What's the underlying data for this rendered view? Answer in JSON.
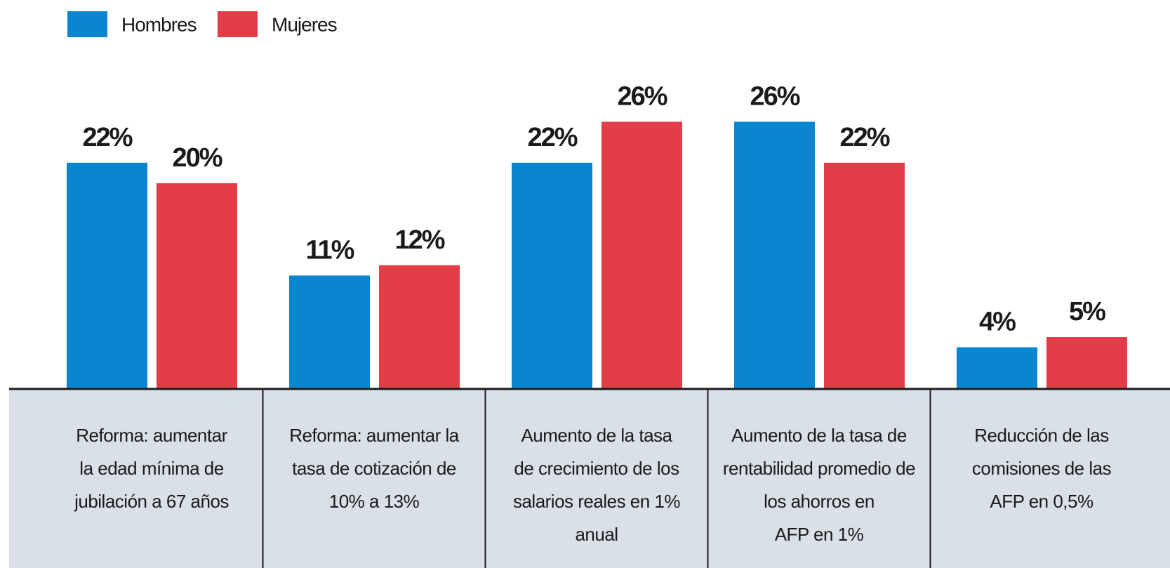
{
  "chart_data": {
    "type": "bar",
    "categories": [
      [
        "Reforma: aumentar",
        "la edad mínima de",
        "jubilación a 67 años"
      ],
      [
        "Reforma: aumentar la",
        "tasa de cotización de",
        "10% a 13%"
      ],
      [
        "Aumento de la tasa",
        "de crecimiento de los",
        "salarios reales en 1%",
        "anual"
      ],
      [
        "Aumento de la tasa de",
        "rentabilidad promedio de",
        "los ahorros en",
        "AFP en 1%"
      ],
      [
        "Reducción de las",
        "comisiones de las",
        "AFP en 0,5%"
      ]
    ],
    "series": [
      {
        "name": "Hombres",
        "color": "#0a86d0",
        "values": [
          22,
          11,
          22,
          26,
          4
        ],
        "value_labels": [
          "22%",
          "11%",
          "22%",
          "26%",
          "4%"
        ]
      },
      {
        "name": "Mujeres",
        "color": "#e33d47",
        "values": [
          20,
          12,
          26,
          22,
          5
        ],
        "value_labels": [
          "20%",
          "12%",
          "26%",
          "22%",
          "5%"
        ]
      }
    ],
    "ylim": [
      0,
      30
    ],
    "legend": "top-left"
  }
}
